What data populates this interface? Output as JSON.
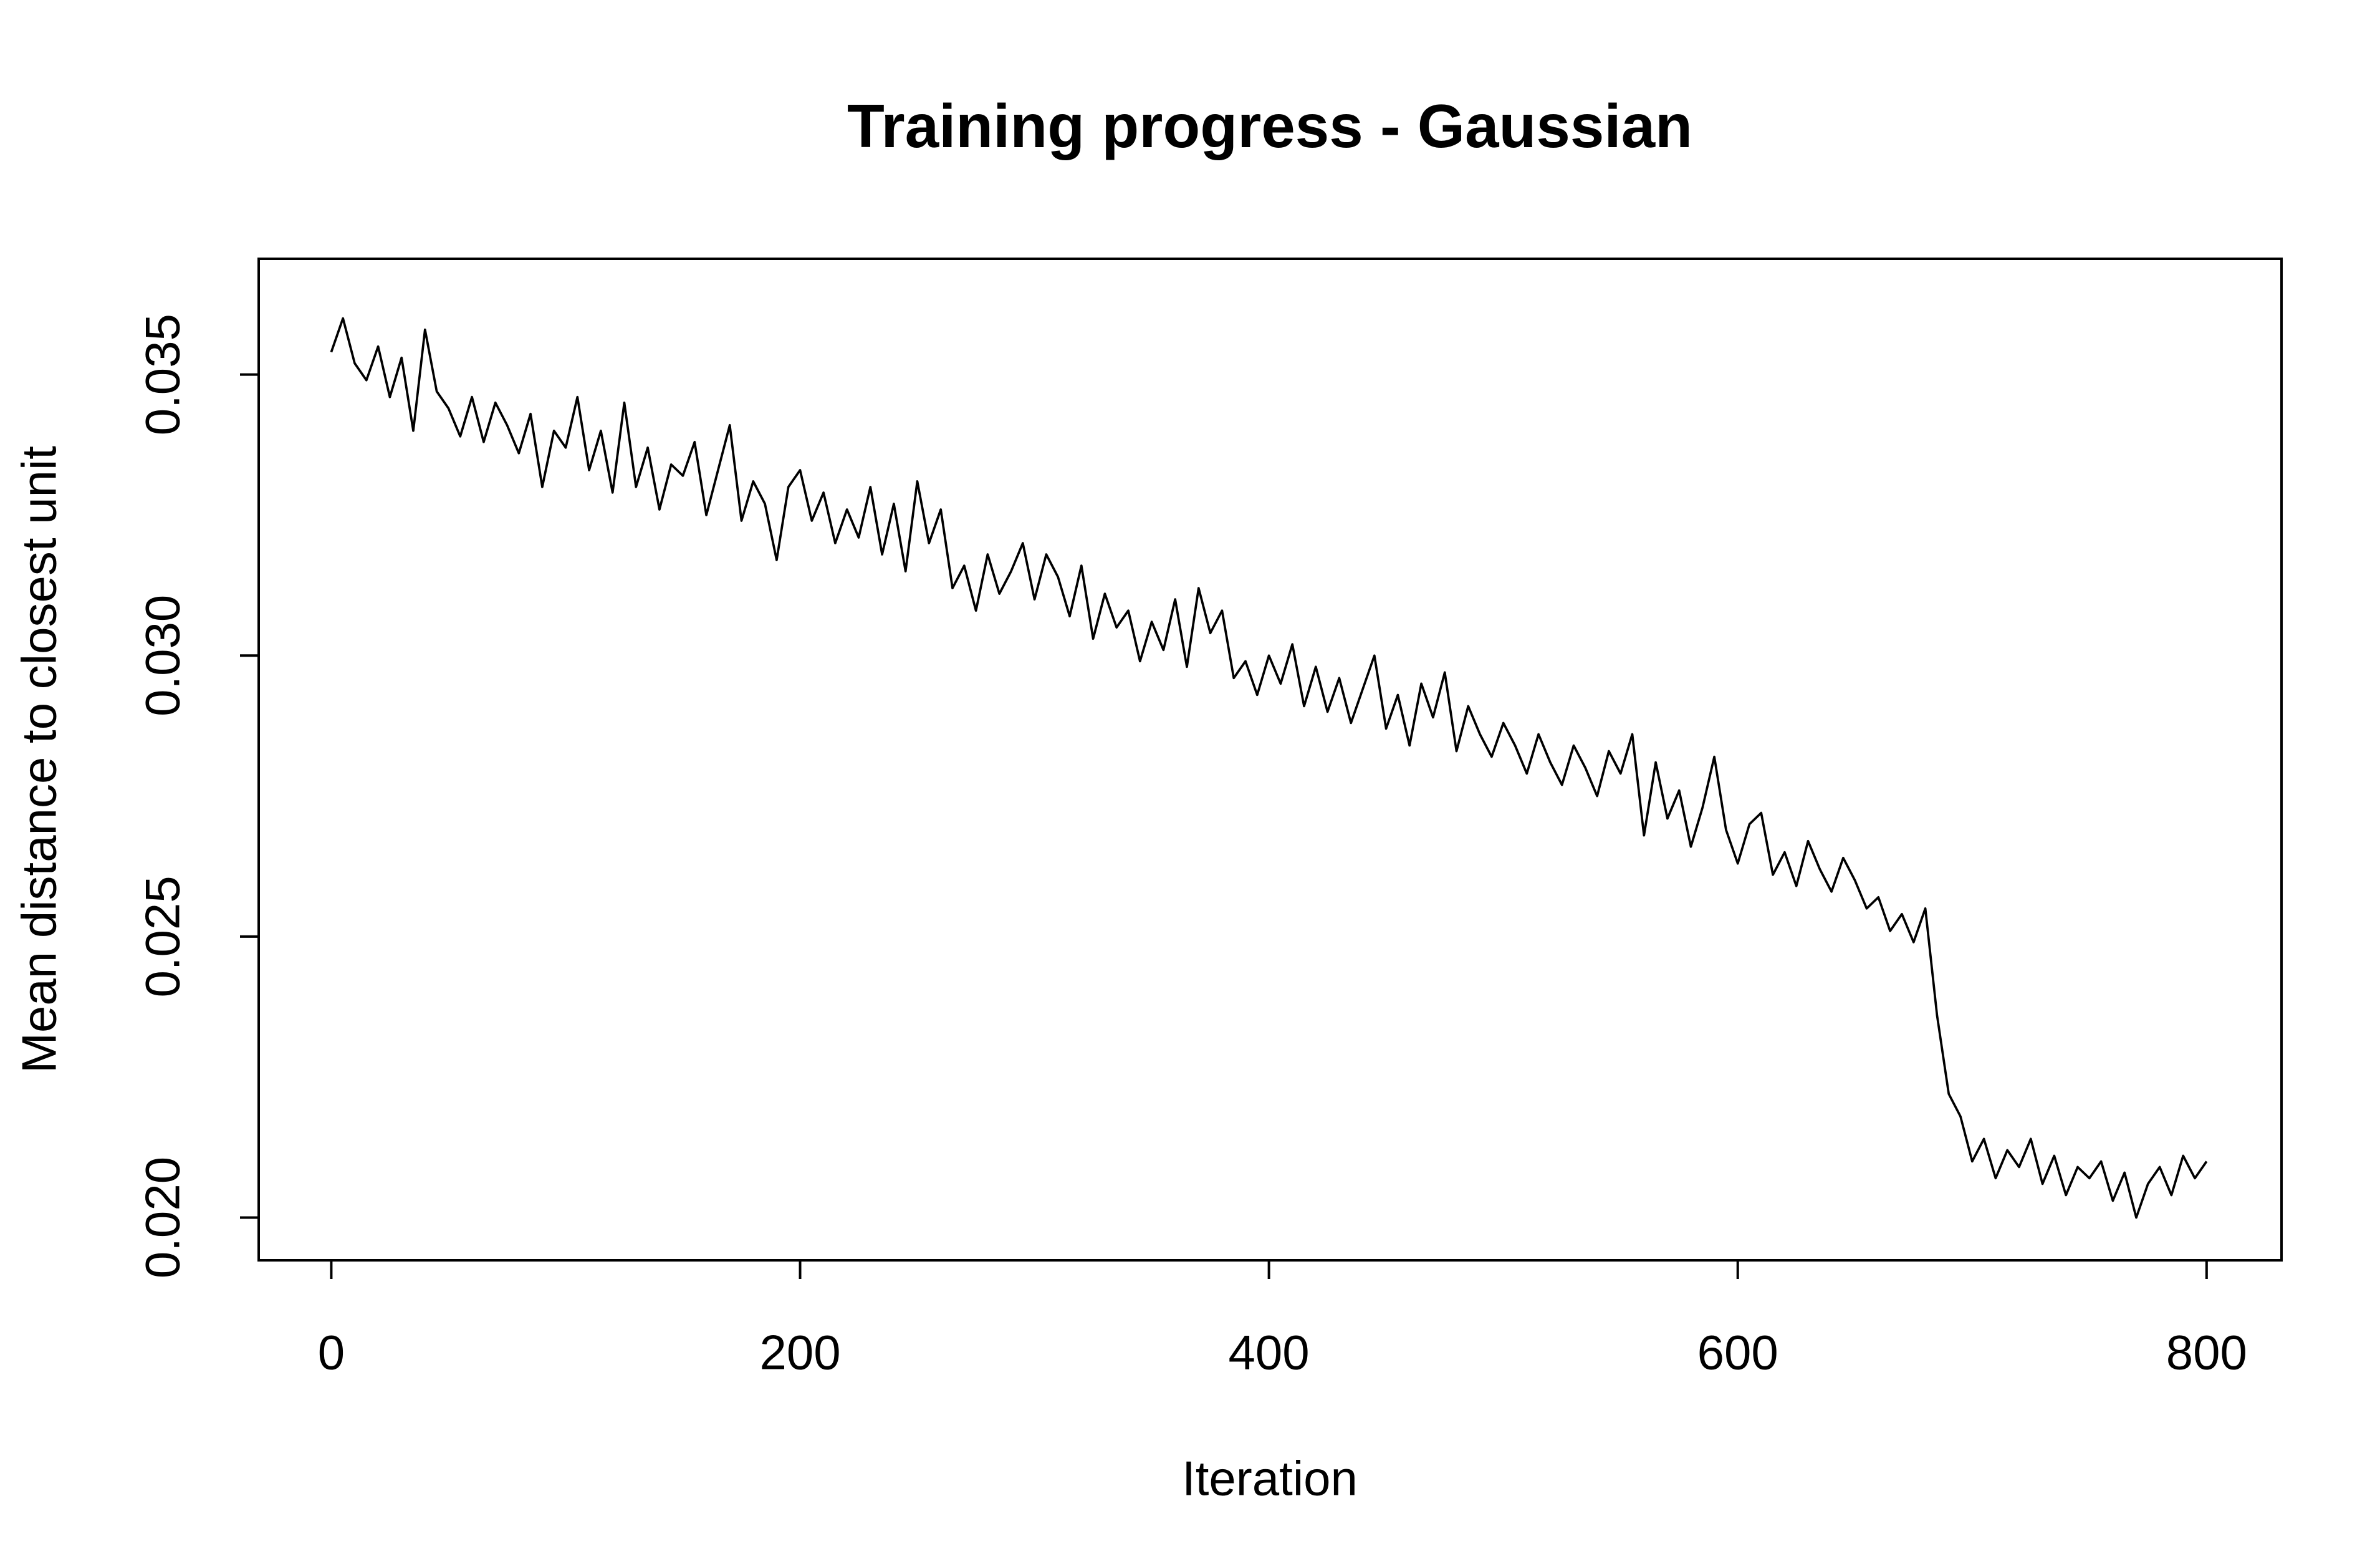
{
  "chart_data": {
    "type": "line",
    "title": "Training progress - Gaussian",
    "xlabel": "Iteration",
    "ylabel": "Mean distance to closest unit",
    "x": [
      0,
      5,
      10,
      15,
      20,
      25,
      30,
      35,
      40,
      45,
      50,
      55,
      60,
      65,
      70,
      75,
      80,
      85,
      90,
      95,
      100,
      105,
      110,
      115,
      120,
      125,
      130,
      135,
      140,
      145,
      150,
      155,
      160,
      165,
      170,
      175,
      180,
      185,
      190,
      195,
      200,
      205,
      210,
      215,
      220,
      225,
      230,
      235,
      240,
      245,
      250,
      255,
      260,
      265,
      270,
      275,
      280,
      285,
      290,
      295,
      300,
      305,
      310,
      315,
      320,
      325,
      330,
      335,
      340,
      345,
      350,
      355,
      360,
      365,
      370,
      375,
      380,
      385,
      390,
      395,
      400,
      405,
      410,
      415,
      420,
      425,
      430,
      435,
      440,
      445,
      450,
      455,
      460,
      465,
      470,
      475,
      480,
      485,
      490,
      495,
      500,
      505,
      510,
      515,
      520,
      525,
      530,
      535,
      540,
      545,
      550,
      555,
      560,
      565,
      570,
      575,
      580,
      585,
      590,
      595,
      600,
      605,
      610,
      615,
      620,
      625,
      630,
      635,
      640,
      645,
      650,
      655,
      660,
      665,
      670,
      675,
      680,
      685,
      690,
      695,
      700,
      705,
      710,
      715,
      720,
      725,
      730,
      735,
      740,
      745,
      750,
      755,
      760,
      765,
      770,
      775,
      780,
      785,
      790,
      795,
      800
    ],
    "series": [
      {
        "color": "#000000",
        "values": [
          0.0354,
          0.036,
          0.0352,
          0.0349,
          0.0355,
          0.0346,
          0.0353,
          0.034,
          0.0358,
          0.0347,
          0.0344,
          0.0339,
          0.0346,
          0.0338,
          0.0345,
          0.0341,
          0.0336,
          0.0343,
          0.033,
          0.034,
          0.0337,
          0.0346,
          0.0333,
          0.034,
          0.0329,
          0.0345,
          0.033,
          0.0337,
          0.0326,
          0.0334,
          0.0332,
          0.0338,
          0.0325,
          0.0333,
          0.0341,
          0.0324,
          0.0331,
          0.0327,
          0.0317,
          0.033,
          0.0333,
          0.0324,
          0.0329,
          0.032,
          0.0326,
          0.0321,
          0.033,
          0.0318,
          0.0327,
          0.0315,
          0.0331,
          0.032,
          0.0326,
          0.0312,
          0.0316,
          0.0308,
          0.0318,
          0.0311,
          0.0315,
          0.032,
          0.031,
          0.0318,
          0.0314,
          0.0307,
          0.0316,
          0.0303,
          0.0311,
          0.0305,
          0.0308,
          0.0299,
          0.0306,
          0.0301,
          0.031,
          0.0298,
          0.0312,
          0.0304,
          0.0308,
          0.0296,
          0.0299,
          0.0293,
          0.03,
          0.0295,
          0.0302,
          0.0291,
          0.0298,
          0.029,
          0.0296,
          0.0288,
          0.0294,
          0.03,
          0.0287,
          0.0293,
          0.0284,
          0.0295,
          0.0289,
          0.0297,
          0.0283,
          0.0291,
          0.0286,
          0.0282,
          0.0288,
          0.0284,
          0.0279,
          0.0286,
          0.0281,
          0.0277,
          0.0284,
          0.028,
          0.0275,
          0.0283,
          0.0279,
          0.0286,
          0.0268,
          0.0281,
          0.0271,
          0.0276,
          0.0266,
          0.0273,
          0.0282,
          0.0269,
          0.0263,
          0.027,
          0.0272,
          0.0261,
          0.0265,
          0.0259,
          0.0267,
          0.0262,
          0.0258,
          0.0264,
          0.026,
          0.0255,
          0.0257,
          0.0251,
          0.0254,
          0.0249,
          0.0255,
          0.0236,
          0.0222,
          0.0218,
          0.021,
          0.0214,
          0.0207,
          0.0212,
          0.0209,
          0.0214,
          0.0206,
          0.0211,
          0.0204,
          0.0209,
          0.0207,
          0.021,
          0.0203,
          0.0208,
          0.02,
          0.0206,
          0.0209,
          0.0204,
          0.0211,
          0.0207,
          0.021
        ]
      }
    ],
    "xlim": [
      -30.96,
      831.96
    ],
    "ylim": [
      0.01924,
      0.03706
    ],
    "xticks": [
      0,
      200,
      400,
      600,
      800
    ],
    "yticks": [
      {
        "value": 0.02,
        "label": "0.020"
      },
      0.025,
      {
        "value": 0.03,
        "label": "0.030"
      },
      0.035
    ],
    "grid": false
  }
}
